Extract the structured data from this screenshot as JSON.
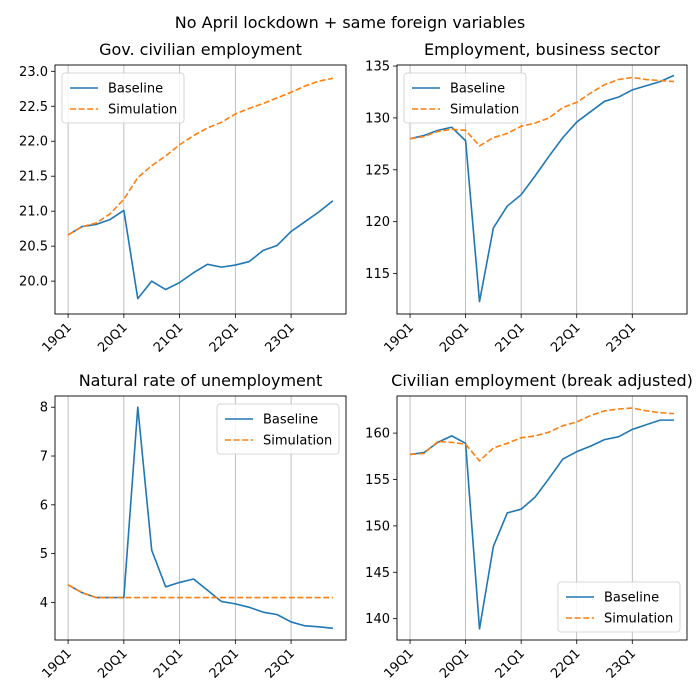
{
  "figure": {
    "title": "No April lockdown + same foreign variables"
  },
  "colors": {
    "baseline": "#1f77b4",
    "simulation": "#ff7f0e",
    "grid": "#b0b0b0"
  },
  "chart_data": [
    {
      "type": "line",
      "title": "Gov. civilian employment",
      "legend_position": "upper left",
      "ylim": [
        19.53,
        23.09
      ],
      "yticks": [
        20.0,
        20.5,
        21.0,
        21.5,
        22.0,
        22.5,
        23.0
      ],
      "ytick_labels": [
        "20.0",
        "20.5",
        "21.0",
        "21.5",
        "22.0",
        "22.5",
        "23.0"
      ],
      "xtick_labels": [
        "19Q1",
        "20Q1",
        "21Q1",
        "22Q1",
        "23Q1"
      ],
      "xgrid": true,
      "series": [
        {
          "name": "Baseline",
          "style": "solid",
          "values": [
            20.66,
            20.78,
            20.81,
            20.88,
            21.01,
            19.75,
            20.0,
            19.88,
            19.98,
            20.12,
            20.24,
            20.2,
            20.23,
            20.28,
            20.44,
            20.51,
            20.71,
            20.85,
            20.99,
            21.15
          ]
        },
        {
          "name": "Simulation",
          "style": "dashed",
          "values": [
            20.66,
            20.78,
            20.83,
            20.96,
            21.17,
            21.48,
            21.65,
            21.79,
            21.95,
            22.08,
            22.19,
            22.27,
            22.39,
            22.47,
            22.54,
            22.62,
            22.7,
            22.79,
            22.86,
            22.9
          ]
        }
      ]
    },
    {
      "type": "line",
      "title": "Employment, business sector",
      "legend_position": "upper left",
      "ylim": [
        111.1,
        135.1
      ],
      "yticks": [
        115,
        120,
        125,
        130,
        135
      ],
      "ytick_labels": [
        "115",
        "120",
        "125",
        "130",
        "135"
      ],
      "xtick_labels": [
        "19Q1",
        "20Q1",
        "21Q1",
        "22Q1",
        "23Q1"
      ],
      "xgrid": true,
      "series": [
        {
          "name": "Baseline",
          "style": "solid",
          "values": [
            128.0,
            128.3,
            128.8,
            129.1,
            127.8,
            112.3,
            119.4,
            121.5,
            122.6,
            124.4,
            126.3,
            128.1,
            129.6,
            130.6,
            131.6,
            132.0,
            132.7,
            133.1,
            133.5,
            134.1
          ]
        },
        {
          "name": "Simulation",
          "style": "dashed",
          "values": [
            128.0,
            128.2,
            128.7,
            128.9,
            128.8,
            127.3,
            128.1,
            128.5,
            129.2,
            129.5,
            130.0,
            131.0,
            131.5,
            132.4,
            133.2,
            133.7,
            133.9,
            133.7,
            133.6,
            133.5
          ]
        }
      ]
    },
    {
      "type": "line",
      "title": "Natural rate of unemployment",
      "legend_position": "upper right",
      "ylim": [
        3.23,
        8.23
      ],
      "yticks": [
        4,
        5,
        6,
        7,
        8
      ],
      "ytick_labels": [
        "4",
        "5",
        "6",
        "7",
        "8"
      ],
      "xtick_labels": [
        "19Q1",
        "20Q1",
        "21Q1",
        "22Q1",
        "23Q1"
      ],
      "xgrid": true,
      "series": [
        {
          "name": "Baseline",
          "style": "solid",
          "values": [
            4.36,
            4.2,
            4.1,
            4.1,
            4.1,
            8.0,
            5.07,
            4.32,
            4.41,
            4.48,
            4.25,
            4.02,
            3.97,
            3.9,
            3.8,
            3.75,
            3.6,
            3.52,
            3.5,
            3.47
          ]
        },
        {
          "name": "Simulation",
          "style": "dashed",
          "values": [
            4.36,
            4.2,
            4.1,
            4.1,
            4.1,
            4.1,
            4.1,
            4.1,
            4.1,
            4.1,
            4.1,
            4.1,
            4.1,
            4.1,
            4.1,
            4.1,
            4.1,
            4.1,
            4.1,
            4.1
          ]
        }
      ]
    },
    {
      "type": "line",
      "title": "Civilian employment (break adjusted)",
      "legend_position": "lower right",
      "ylim": [
        137.7,
        164.0
      ],
      "yticks": [
        140,
        145,
        150,
        155,
        160
      ],
      "ytick_labels": [
        "140",
        "145",
        "150",
        "155",
        "160"
      ],
      "xtick_labels": [
        "19Q1",
        "20Q1",
        "21Q1",
        "22Q1",
        "23Q1"
      ],
      "xgrid": true,
      "series": [
        {
          "name": "Baseline",
          "style": "solid",
          "values": [
            157.7,
            157.9,
            159.0,
            159.7,
            158.9,
            138.9,
            147.8,
            151.4,
            151.8,
            153.1,
            155.1,
            157.2,
            158.0,
            158.6,
            159.3,
            159.6,
            160.4,
            160.9,
            161.4,
            161.4
          ]
        },
        {
          "name": "Simulation",
          "style": "dashed",
          "values": [
            157.7,
            157.8,
            159.1,
            159.0,
            158.8,
            157.0,
            158.4,
            158.9,
            159.5,
            159.7,
            160.1,
            160.8,
            161.2,
            161.9,
            162.4,
            162.6,
            162.7,
            162.4,
            162.2,
            162.1
          ]
        }
      ]
    }
  ]
}
